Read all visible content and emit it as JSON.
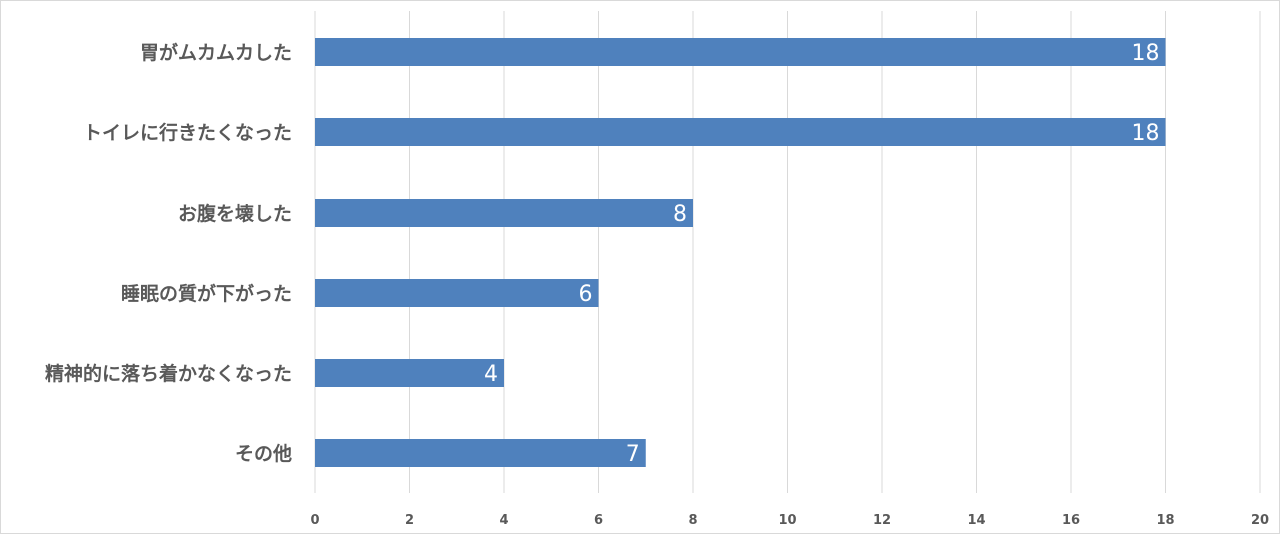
{
  "chart_data": {
    "type": "bar",
    "orientation": "horizontal",
    "categories": [
      "胃がムカムカした",
      "トイレに行きたくなった",
      "お腹を壊した",
      "睡眠の質が下がった",
      "精神的に落ち着かなくなった",
      "その他"
    ],
    "values": [
      18,
      18,
      8,
      6,
      4,
      7
    ],
    "xlim": [
      0,
      20
    ],
    "x_ticks": [
      "0",
      "2",
      "4",
      "6",
      "8",
      "10",
      "12",
      "14",
      "16",
      "18",
      "20"
    ],
    "data_labels": [
      "18",
      "18",
      "8",
      "6",
      "4",
      "7"
    ],
    "title": "",
    "xlabel": "",
    "ylabel": "",
    "grid": "vertical",
    "legend": "none",
    "bar_color": "#4f81bd",
    "grid_color": "#d9d9d9",
    "label_color": "#595959",
    "data_label_color": "#ffffff"
  }
}
